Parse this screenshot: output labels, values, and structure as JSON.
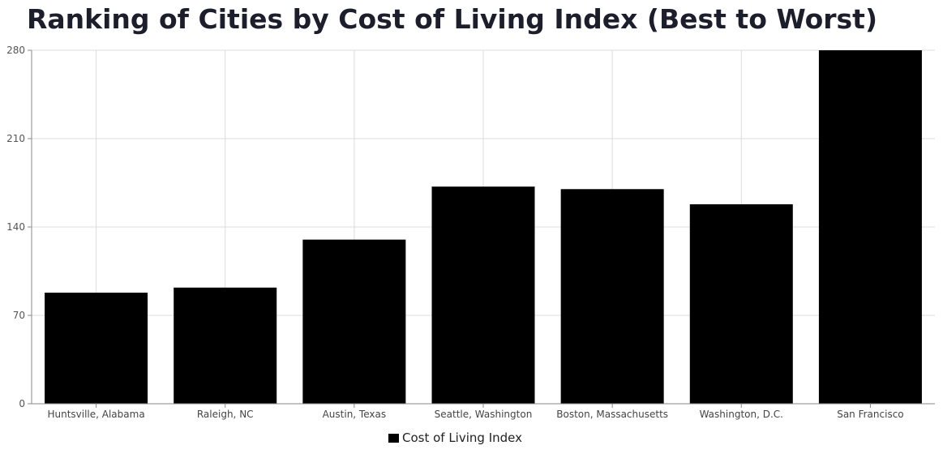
{
  "chart_data": {
    "type": "bar",
    "title": "Ranking of Cities by Cost of Living Index (Best to Worst)",
    "xlabel": "",
    "ylabel": "",
    "categories": [
      "Huntsville, Alabama",
      "Raleigh, NC",
      "Austin, Texas",
      "Seattle, Washington",
      "Boston, Massachusetts",
      "Washington, D.C.",
      "San Francisco"
    ],
    "series": [
      {
        "name": "Cost of Living Index",
        "values": [
          88,
          92,
          130,
          172,
          170,
          158,
          280
        ],
        "color": "#000000"
      }
    ],
    "ylim": [
      0,
      280
    ],
    "yticks": [
      "0",
      "70",
      "140",
      "210",
      "280"
    ],
    "grid": true,
    "legend": "bottom-center"
  }
}
